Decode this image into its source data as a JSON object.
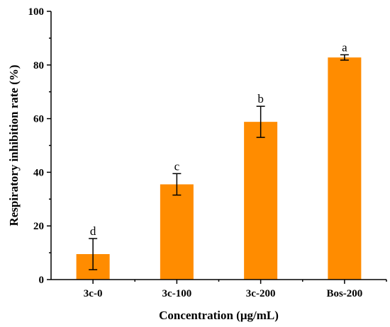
{
  "chart_data": {
    "type": "bar",
    "categories": [
      "3c-0",
      "3c-100",
      "3c-200",
      "Bos-200"
    ],
    "values": [
      9.5,
      35.5,
      58.8,
      82.8
    ],
    "errors": [
      5.8,
      4.0,
      5.8,
      1.0
    ],
    "significance": [
      "d",
      "c",
      "b",
      "a"
    ],
    "title": "",
    "xlabel": "Concentration (μg/mL)",
    "ylabel": "Respiratory inhibition rate (%)",
    "ylim": [
      0,
      100
    ],
    "yticks": [
      0,
      20,
      40,
      60,
      80,
      100
    ],
    "bar_color": "#FF8C00",
    "grid": false
  }
}
